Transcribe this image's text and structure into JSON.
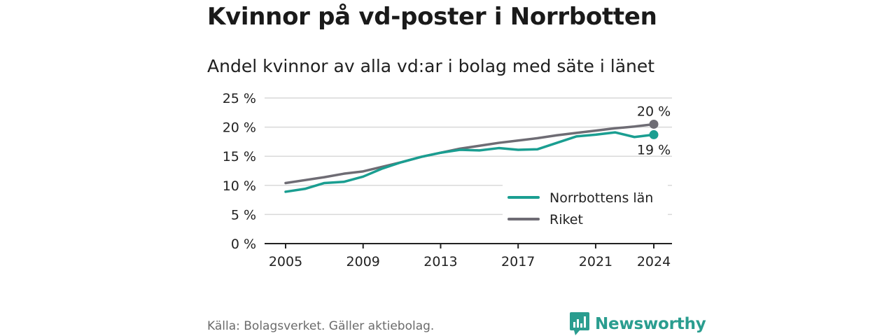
{
  "title": "Kvinnor på vd-poster i Norrbotten",
  "subtitle": "Andel kvinnor av alla vd:ar i bolag med säte i länet",
  "source": "Källa: Bolagsverket. Gäller aktiebolag.",
  "logo_text": "Newsworthy",
  "colors": {
    "norrbotten": "#1a9e91",
    "riket": "#6e6c74",
    "grid": "#d9d9d9",
    "axis": "#222222"
  },
  "chart_data": {
    "type": "line",
    "x": [
      2005,
      2006,
      2007,
      2008,
      2009,
      2010,
      2011,
      2012,
      2013,
      2014,
      2015,
      2016,
      2017,
      2018,
      2019,
      2020,
      2021,
      2022,
      2023,
      2024
    ],
    "x_ticks": [
      2005,
      2009,
      2013,
      2017,
      2021,
      2024
    ],
    "y_ticks": [
      0,
      5,
      10,
      15,
      20,
      25
    ],
    "y_tick_suffix": " %",
    "ylim": [
      0,
      25
    ],
    "grid": true,
    "legend_position": "bottom-right",
    "series": [
      {
        "name": "Norrbottens län",
        "color": "#1a9e91",
        "values": [
          8.9,
          9.4,
          10.4,
          10.6,
          11.5,
          12.9,
          14.0,
          14.9,
          15.6,
          16.1,
          16.0,
          16.4,
          16.1,
          16.2,
          17.3,
          18.4,
          18.7,
          19.1,
          18.3,
          18.7
        ],
        "end_label": "19 %"
      },
      {
        "name": "Riket",
        "color": "#6e6c74",
        "values": [
          10.4,
          10.9,
          11.4,
          12.0,
          12.4,
          13.2,
          14.0,
          14.9,
          15.6,
          16.3,
          16.8,
          17.3,
          17.7,
          18.1,
          18.6,
          19.0,
          19.4,
          19.8,
          20.1,
          20.5
        ],
        "end_label": "20 %"
      }
    ]
  }
}
